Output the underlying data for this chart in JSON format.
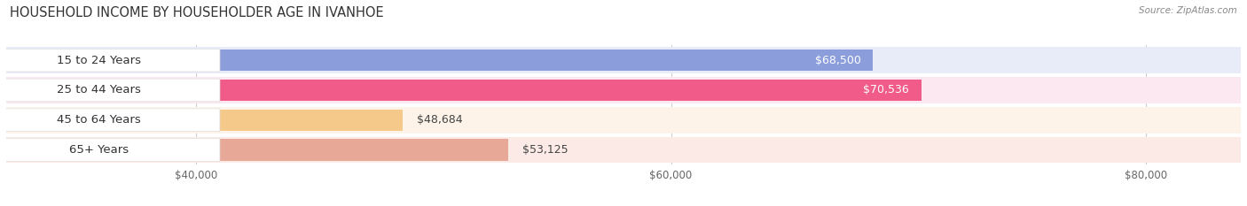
{
  "title": "HOUSEHOLD INCOME BY HOUSEHOLDER AGE IN IVANHOE",
  "source": "Source: ZipAtlas.com",
  "categories": [
    "15 to 24 Years",
    "25 to 44 Years",
    "45 to 64 Years",
    "65+ Years"
  ],
  "values": [
    68500,
    70536,
    48684,
    53125
  ],
  "bar_colors": [
    "#8b9ddb",
    "#f05b8a",
    "#f5c98a",
    "#e8a898"
  ],
  "bar_bg_colors": [
    "#e5eaf8",
    "#fce8f0",
    "#fdf3e7",
    "#fceae6"
  ],
  "value_labels": [
    "$68,500",
    "$70,536",
    "$48,684",
    "$53,125"
  ],
  "value_label_colors": [
    "white",
    "white",
    "#555555",
    "#555555"
  ],
  "xmin": 32000,
  "xmax": 84000,
  "xticks": [
    40000,
    60000,
    80000
  ],
  "xtick_labels": [
    "$40,000",
    "$60,000",
    "$80,000"
  ],
  "title_fontsize": 10.5,
  "label_fontsize": 9.5,
  "value_fontsize": 9,
  "background_color": "#f0f0f0",
  "row_bg_colors": [
    "#e8ecf8",
    "#fce8f0",
    "#fdf3e8",
    "#fceae6"
  ]
}
